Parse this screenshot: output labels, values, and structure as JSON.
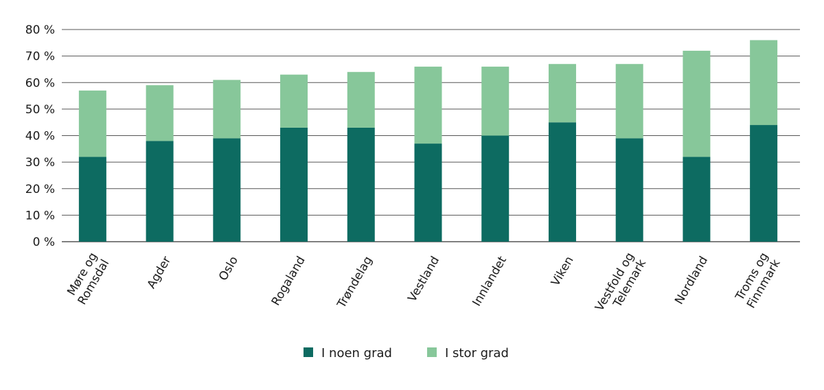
{
  "chart_data": {
    "type": "bar",
    "stacked": true,
    "title": "",
    "xlabel": "",
    "ylabel": "",
    "ylim": [
      0,
      80
    ],
    "yticks": [
      0,
      10,
      20,
      30,
      40,
      50,
      60,
      70,
      80
    ],
    "ytick_suffix": " %",
    "categories": [
      [
        "Møre og",
        "Romsdal"
      ],
      [
        "Agder"
      ],
      [
        "Oslo"
      ],
      [
        "Rogaland"
      ],
      [
        "Trøndelag"
      ],
      [
        "Vestland"
      ],
      [
        "Innlandet"
      ],
      [
        "Viken"
      ],
      [
        "Vestfold og",
        "Telemark"
      ],
      [
        "Nordland"
      ],
      [
        "Troms og",
        "Finnmark"
      ]
    ],
    "series": [
      {
        "name": "I noen grad",
        "color": "#0d6b61",
        "values": [
          32,
          38,
          39,
          43,
          43,
          37,
          40,
          45,
          39,
          32,
          44
        ]
      },
      {
        "name": "I stor grad",
        "color": "#87c79a",
        "values": [
          25,
          21,
          22,
          20,
          21,
          29,
          26,
          22,
          28,
          40,
          32
        ]
      }
    ],
    "grid": true,
    "legend_position": "bottom-center"
  }
}
